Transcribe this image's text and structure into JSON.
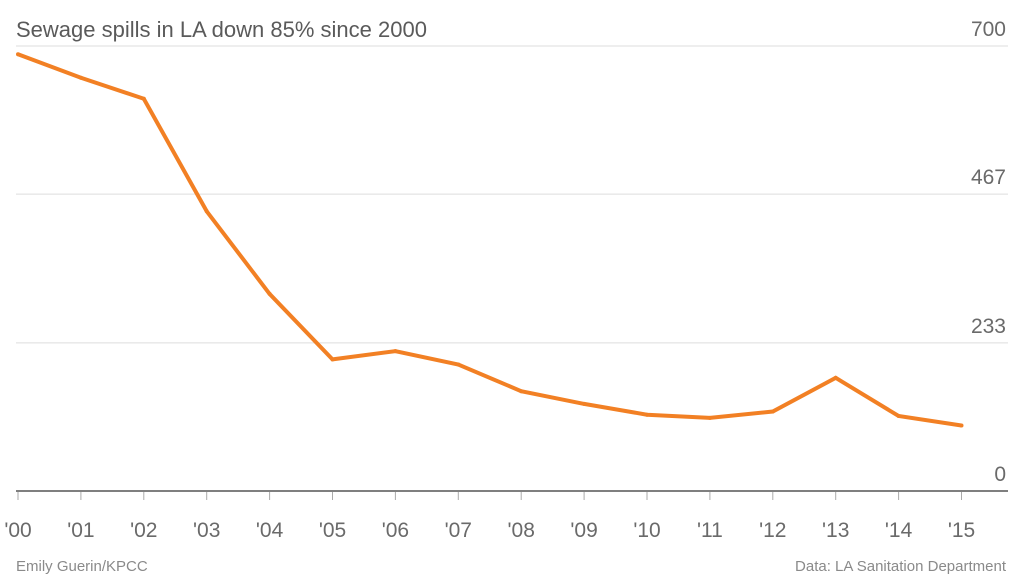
{
  "chart_data": {
    "type": "line",
    "title": "Sewage spills in LA down 85% since 2000",
    "categories": [
      "'00",
      "'01",
      "'02",
      "'03",
      "'04",
      "'05",
      "'06",
      "'07",
      "'08",
      "'09",
      "'10",
      "'11",
      "'12",
      "'13",
      "'14",
      "'15"
    ],
    "series": [
      {
        "values": [
          687,
          650,
          617,
          440,
          310,
          207,
          220,
          199,
          157,
          137,
          120,
          115,
          125,
          178,
          118,
          103
        ]
      }
    ],
    "yticks": [
      0,
      233,
      467,
      700
    ],
    "ylim": [
      0,
      700
    ],
    "grid": true,
    "y_axis_side": "right",
    "colors": {
      "line": "#f28024",
      "grid": "#dedede",
      "baseline": "#555555"
    }
  },
  "footer": {
    "credit": "Emily Guerin/KPCC",
    "source": "Data: LA Sanitation Department"
  }
}
